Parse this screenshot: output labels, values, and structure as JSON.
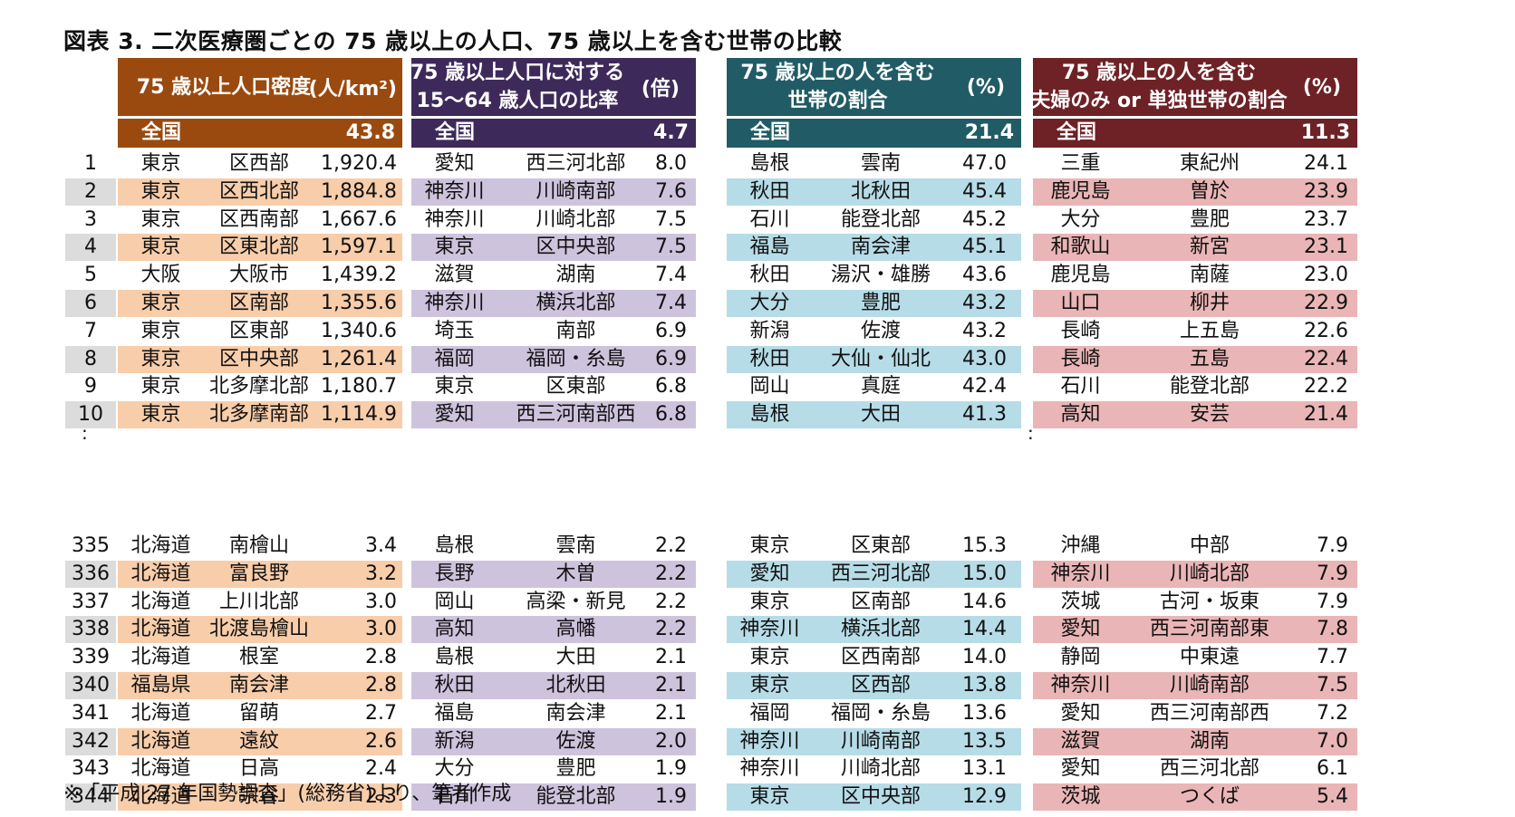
{
  "title": "図表 3.  二次医療圏ごとの 75 歳以上の人口、75 歳以上を含む世帯の比較",
  "footnote": "※「平成 27 年国勢調査」(総務省)より、筆者作成",
  "ranks_top": [
    "1",
    "2",
    "3",
    "4",
    "5",
    "6",
    "7",
    "8",
    "9",
    "10"
  ],
  "ranks_bottom": [
    "335",
    "336",
    "337",
    "338",
    "339",
    "340",
    "341",
    "342",
    "343",
    "344"
  ],
  "ellipsis": ":",
  "panels": [
    {
      "header_lines": [
        "75 歳以上人口密度"
      ],
      "unit": "(人/km²)",
      "header_color": "#9b4a0f",
      "row_color": "#f8cdaa",
      "national_label": "全国",
      "national_value": "43.8",
      "top": [
        [
          "東京",
          "区西部",
          "1,920.4"
        ],
        [
          "東京",
          "区西北部",
          "1,884.8"
        ],
        [
          "東京",
          "区西南部",
          "1,667.6"
        ],
        [
          "東京",
          "区東北部",
          "1,597.1"
        ],
        [
          "大阪",
          "大阪市",
          "1,439.2"
        ],
        [
          "東京",
          "区南部",
          "1,355.6"
        ],
        [
          "東京",
          "区東部",
          "1,340.6"
        ],
        [
          "東京",
          "区中央部",
          "1,261.4"
        ],
        [
          "東京",
          "北多摩北部",
          "1,180.7"
        ],
        [
          "東京",
          "北多摩南部",
          "1,114.9"
        ]
      ],
      "bottom": [
        [
          "北海道",
          "南檜山",
          "3.4"
        ],
        [
          "北海道",
          "富良野",
          "3.2"
        ],
        [
          "北海道",
          "上川北部",
          "3.0"
        ],
        [
          "北海道",
          "北渡島檜山",
          "3.0"
        ],
        [
          "北海道",
          "根室",
          "2.8"
        ],
        [
          "福島県",
          "南会津",
          "2.8"
        ],
        [
          "北海道",
          "留萌",
          "2.7"
        ],
        [
          "北海道",
          "遠紋",
          "2.6"
        ],
        [
          "北海道",
          "日高",
          "2.4"
        ],
        [
          "北海道",
          "宗谷",
          "2.3"
        ]
      ]
    },
    {
      "header_lines": [
        "75 歳以上人口に対する",
        "15〜64 歳人口の比率"
      ],
      "unit": "(倍)",
      "header_color": "#3e2a5a",
      "row_color": "#cec3dd",
      "national_label": "全国",
      "national_value": "4.7",
      "top": [
        [
          "愛知",
          "西三河北部",
          "8.0"
        ],
        [
          "神奈川",
          "川崎南部",
          "7.6"
        ],
        [
          "神奈川",
          "川崎北部",
          "7.5"
        ],
        [
          "東京",
          "区中央部",
          "7.5"
        ],
        [
          "滋賀",
          "湖南",
          "7.4"
        ],
        [
          "神奈川",
          "横浜北部",
          "7.4"
        ],
        [
          "埼玉",
          "南部",
          "6.9"
        ],
        [
          "福岡",
          "福岡・糸島",
          "6.9"
        ],
        [
          "東京",
          "区東部",
          "6.8"
        ],
        [
          "愛知",
          "西三河南部西",
          "6.8"
        ]
      ],
      "bottom": [
        [
          "島根",
          "雲南",
          "2.2"
        ],
        [
          "長野",
          "木曽",
          "2.2"
        ],
        [
          "岡山",
          "高梁・新見",
          "2.2"
        ],
        [
          "高知",
          "高幡",
          "2.2"
        ],
        [
          "島根",
          "大田",
          "2.1"
        ],
        [
          "秋田",
          "北秋田",
          "2.1"
        ],
        [
          "福島",
          "南会津",
          "2.1"
        ],
        [
          "新潟",
          "佐渡",
          "2.0"
        ],
        [
          "大分",
          "豊肥",
          "1.9"
        ],
        [
          "石川",
          "能登北部",
          "1.9"
        ]
      ]
    },
    {
      "header_lines": [
        "75 歳以上の人を含む",
        "世帯の割合"
      ],
      "unit": "(%)",
      "header_color": "#215c66",
      "row_color": "#b6dce7",
      "national_label": "全国",
      "national_value": "21.4",
      "top": [
        [
          "島根",
          "雲南",
          "47.0"
        ],
        [
          "秋田",
          "北秋田",
          "45.4"
        ],
        [
          "石川",
          "能登北部",
          "45.2"
        ],
        [
          "福島",
          "南会津",
          "45.1"
        ],
        [
          "秋田",
          "湯沢・雄勝",
          "43.6"
        ],
        [
          "大分",
          "豊肥",
          "43.2"
        ],
        [
          "新潟",
          "佐渡",
          "43.2"
        ],
        [
          "秋田",
          "大仙・仙北",
          "43.0"
        ],
        [
          "岡山",
          "真庭",
          "42.4"
        ],
        [
          "島根",
          "大田",
          "41.3"
        ]
      ],
      "bottom": [
        [
          "東京",
          "区東部",
          "15.3"
        ],
        [
          "愛知",
          "西三河北部",
          "15.0"
        ],
        [
          "東京",
          "区南部",
          "14.6"
        ],
        [
          "神奈川",
          "横浜北部",
          "14.4"
        ],
        [
          "東京",
          "区西南部",
          "14.0"
        ],
        [
          "東京",
          "区西部",
          "13.8"
        ],
        [
          "福岡",
          "福岡・糸島",
          "13.6"
        ],
        [
          "神奈川",
          "川崎南部",
          "13.5"
        ],
        [
          "神奈川",
          "川崎北部",
          "13.1"
        ],
        [
          "東京",
          "区中央部",
          "12.9"
        ]
      ]
    },
    {
      "header_lines": [
        "75 歳以上の人を含む",
        "夫婦のみ or 単独世帯の割合"
      ],
      "unit": "(%)",
      "header_color": "#6e2226",
      "row_color": "#eab5b6",
      "national_label": "全国",
      "national_value": "11.3",
      "top": [
        [
          "三重",
          "東紀州",
          "24.1"
        ],
        [
          "鹿児島",
          "曽於",
          "23.9"
        ],
        [
          "大分",
          "豊肥",
          "23.7"
        ],
        [
          "和歌山",
          "新宮",
          "23.1"
        ],
        [
          "鹿児島",
          "南薩",
          "23.0"
        ],
        [
          "山口",
          "柳井",
          "22.9"
        ],
        [
          "長崎",
          "上五島",
          "22.6"
        ],
        [
          "長崎",
          "五島",
          "22.4"
        ],
        [
          "石川",
          "能登北部",
          "22.2"
        ],
        [
          "高知",
          "安芸",
          "21.4"
        ]
      ],
      "bottom": [
        [
          "沖縄",
          "中部",
          "7.9"
        ],
        [
          "神奈川",
          "川崎北部",
          "7.9"
        ],
        [
          "茨城",
          "古河・坂東",
          "7.9"
        ],
        [
          "愛知",
          "西三河南部東",
          "7.8"
        ],
        [
          "静岡",
          "中東遠",
          "7.7"
        ],
        [
          "神奈川",
          "川崎南部",
          "7.5"
        ],
        [
          "愛知",
          "西三河南部西",
          "7.2"
        ],
        [
          "滋賀",
          "湖南",
          "7.0"
        ],
        [
          "愛知",
          "西三河北部",
          "6.1"
        ],
        [
          "茨城",
          "つくば",
          "5.4"
        ]
      ]
    }
  ]
}
